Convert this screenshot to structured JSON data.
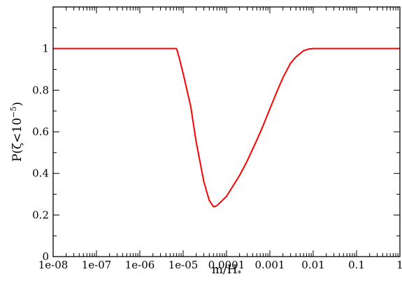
{
  "chart_data": {
    "type": "line",
    "xscale": "log",
    "xlim": [
      "1e-08",
      "1"
    ],
    "ylim": [
      0,
      1.2
    ],
    "grid": false,
    "x_ticks": [
      "1e-08",
      "1e-07",
      "1e-06",
      "1e-05",
      "0.0001",
      "0.001",
      "0.01",
      "0.1",
      "1"
    ],
    "y_ticks": [
      "0",
      "0.2",
      "0.4",
      "0.6",
      "0.8",
      "1"
    ],
    "xlabel": {
      "main": "m/H",
      "sub": "*"
    },
    "ylabel": {
      "main": "P(ζ<10",
      "sup": "−5",
      "close": ")"
    },
    "series": [
      {
        "color": "#ff0000",
        "x": [
          "1e-08",
          "1e-06",
          "6e-06",
          "7e-06",
          "7.3e-06",
          "8e-06",
          "1e-05",
          "1.5e-05",
          "2e-05",
          "3e-05",
          "4e-05",
          "5e-05",
          "6e-05",
          "8e-05",
          "0.0001",
          "0.0002",
          "0.0003",
          "0.0005",
          "0.0007",
          "0.001",
          "0.0015",
          "0.002",
          "0.003",
          "0.004",
          "0.006",
          "0.008",
          "0.01",
          "0.02",
          "1"
        ],
        "y": [
          1,
          1,
          1,
          1,
          0.99,
          0.96,
          0.88,
          0.72,
          0.55,
          0.36,
          0.27,
          0.24,
          0.245,
          0.27,
          0.29,
          0.39,
          0.46,
          0.56,
          0.63,
          0.71,
          0.8,
          0.86,
          0.93,
          0.96,
          0.99,
          0.998,
          1,
          1,
          1
        ]
      }
    ]
  }
}
